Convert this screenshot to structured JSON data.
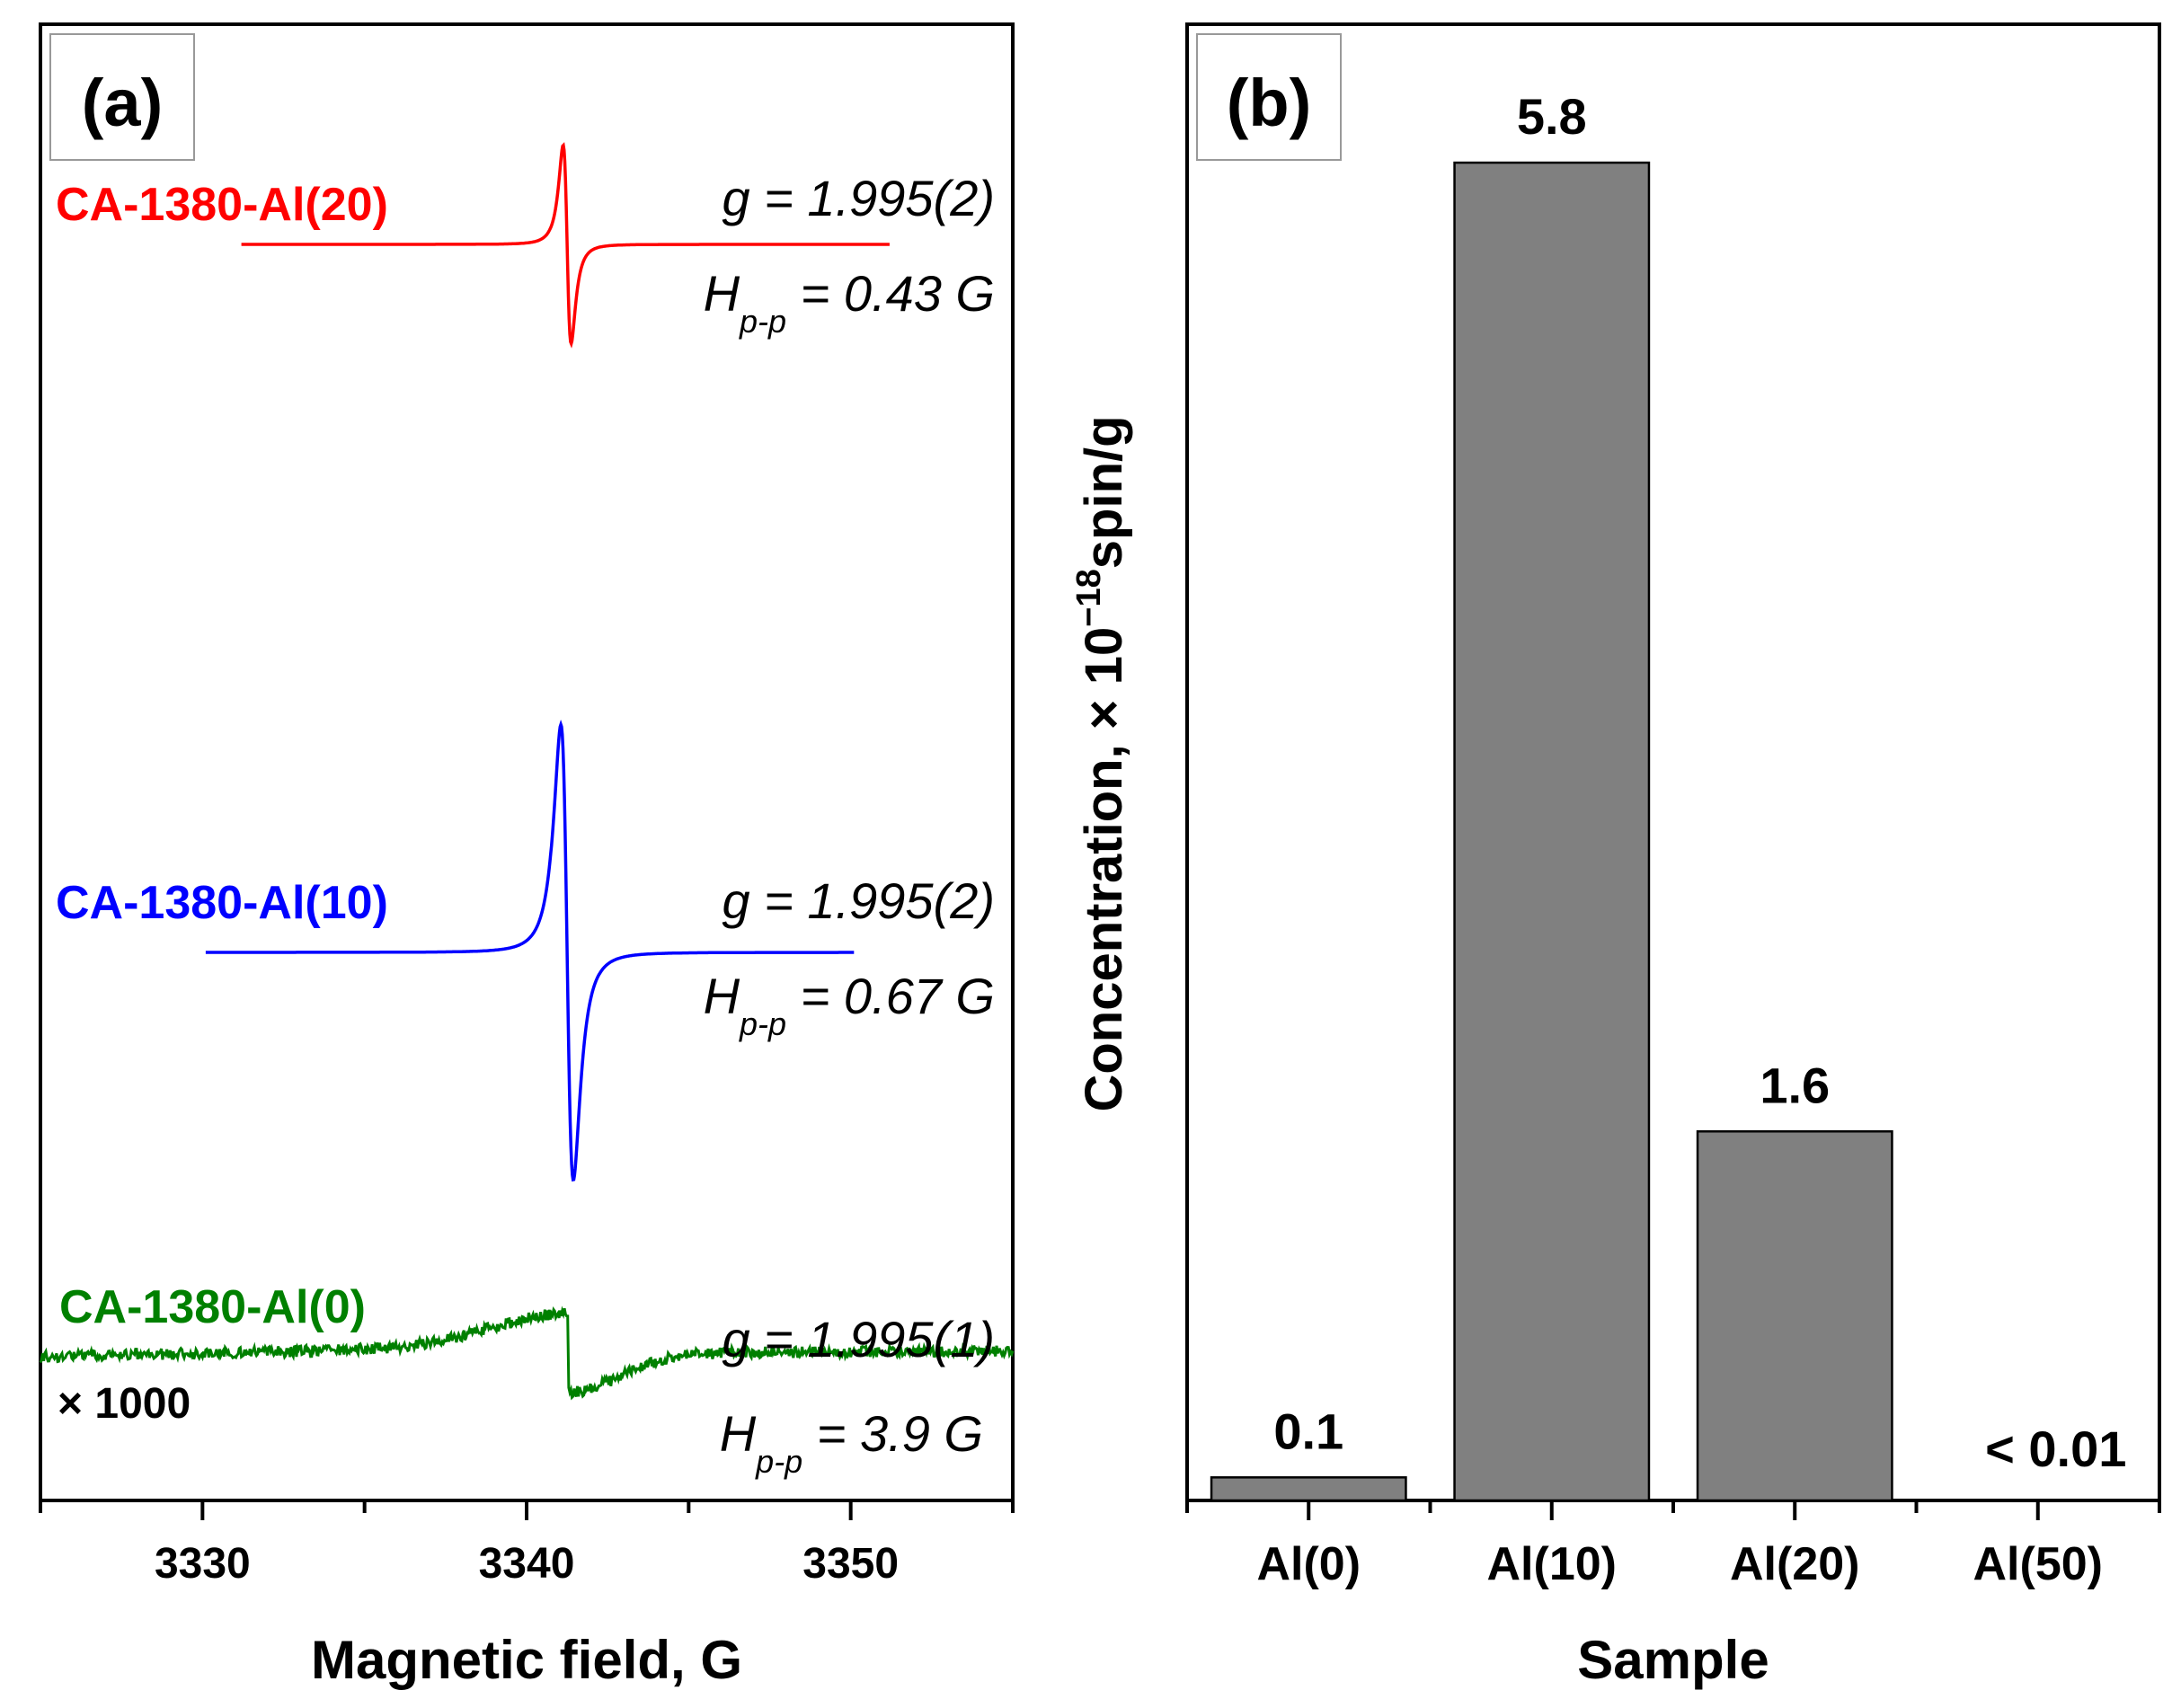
{
  "chart_data": [
    {
      "type": "line",
      "panel_label": "(a)",
      "title": "",
      "xlabel": "Magnetic field, G",
      "ylabel": "",
      "xlim": [
        3325,
        3355
      ],
      "xticks": [
        3330,
        3340,
        3350
      ],
      "tick_labels": [
        "3330",
        "3340",
        "3350"
      ],
      "yaxis_shown": false,
      "series": [
        {
          "name": "CA-1380-Al(20)",
          "color": "#ff0000",
          "x_range": [
            3331.2,
            3351.2
          ],
          "center": 3341.2,
          "hpp": 0.43,
          "annotation_g": "g = 1.995(2)",
          "annotation_h_main": "H",
          "annotation_h_sub": "p-p",
          "annotation_h_value": " = 0.43 G"
        },
        {
          "name": "CA-1380-Al(10)",
          "color": "#0000ff",
          "x_range": [
            3330.1,
            3350.1
          ],
          "center": 3341.2,
          "hpp": 0.67,
          "annotation_g": "g = 1.995(2)",
          "annotation_h_main": "H",
          "annotation_h_sub": "p-p",
          "annotation_h_value": " = 0.67 G"
        },
        {
          "name": "CA-1380-Al(0)",
          "color": "#008000",
          "x_range": [
            3325,
            3355
          ],
          "center": 3341.3,
          "hpp": 3.9,
          "scale_label": "× 1000",
          "annotation_g": "g = 1.995(1)",
          "annotation_h_main": "H",
          "annotation_h_sub": "p-p",
          "annotation_h_value": " = 3.9 G"
        }
      ]
    },
    {
      "type": "bar",
      "panel_label": "(b)",
      "title": "",
      "xlabel": "Sample",
      "ylabel_prefix": "Concentration, × 10",
      "ylabel_exponent": "−18",
      "ylabel_suffix": "spin/g",
      "ylim": [
        0,
        6.4
      ],
      "categories": [
        "Al(0)",
        "Al(10)",
        "Al(20)",
        "Al(50)"
      ],
      "values": [
        0.1,
        5.8,
        1.6,
        0
      ],
      "value_labels": [
        "0.1",
        "5.8",
        "1.6",
        "< 0.01"
      ],
      "bar_color": "#808080"
    }
  ]
}
